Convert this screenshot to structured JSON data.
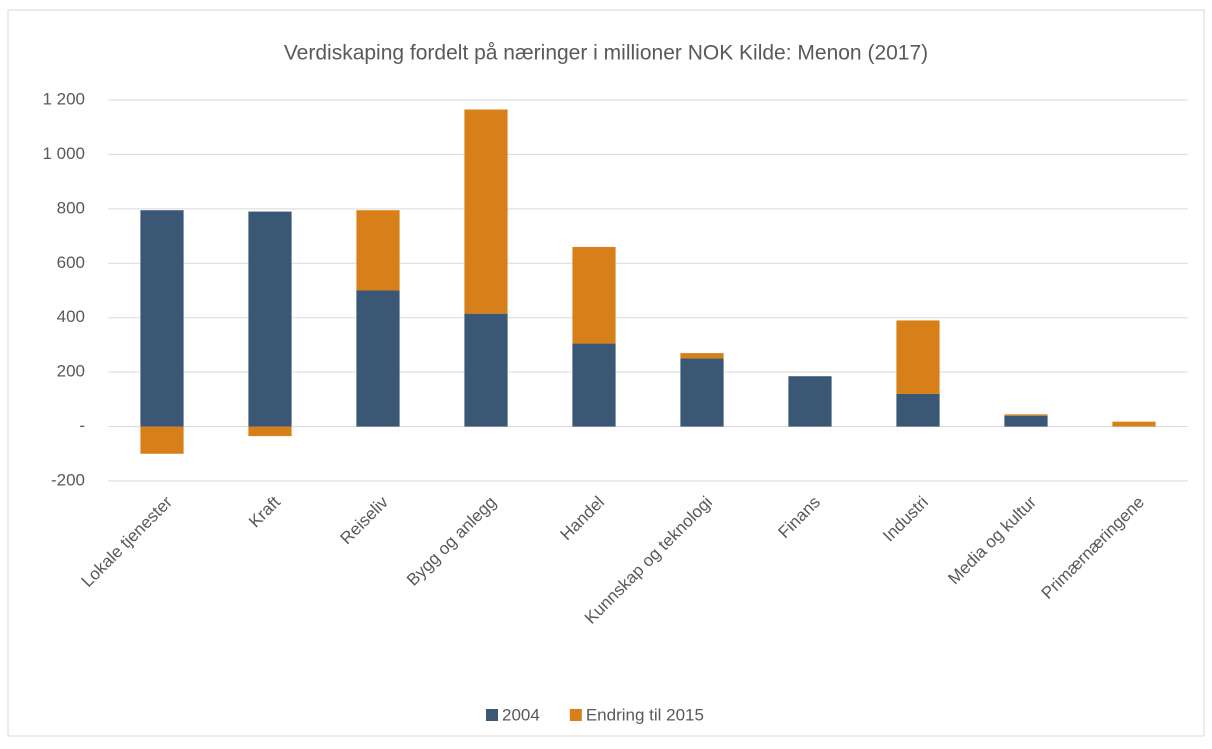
{
  "chart_data": {
    "type": "stacked-bar",
    "title": "Verdiskaping fordelt på næringer i millioner NOK Kilde: Menon (2017)",
    "categories": [
      "Lokale tjenester",
      "Kraft",
      "Reiseliv",
      "Bygg og anlegg",
      "Handel",
      "Kunnskap og teknologi",
      "Finans",
      "Industri",
      "Media og kultur",
      "Primærnæringene"
    ],
    "series": [
      {
        "name": "2004",
        "color": "#3a5876",
        "values": [
          795,
          790,
          500,
          415,
          305,
          250,
          185,
          120,
          40,
          0
        ]
      },
      {
        "name": "Endring til 2015",
        "color": "#d7801a",
        "values": [
          -100,
          -35,
          295,
          750,
          355,
          20,
          0,
          270,
          5,
          18
        ]
      }
    ],
    "ylim": [
      -200,
      1200
    ],
    "yticks": [
      -200,
      {
        "value": 0,
        "label": "-"
      },
      200,
      400,
      600,
      800,
      {
        "value": 1000,
        "label": "1 000"
      },
      {
        "value": 1200,
        "label": "1 200"
      }
    ],
    "grid": true,
    "legend": "bottom"
  }
}
